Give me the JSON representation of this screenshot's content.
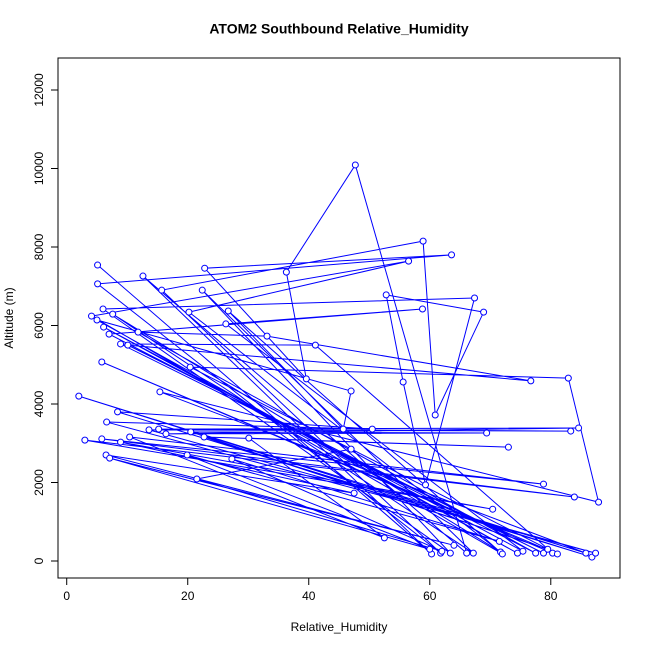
{
  "chart_data": {
    "type": "line",
    "title": "ATOM2 Southbound Relative_Humidity",
    "x_label": "Relative_Humidity",
    "y_label": "Altitude (m)",
    "color": "#0000ff",
    "markers": true,
    "grid": false,
    "xlim": [
      -1.44,
      91.44
    ],
    "ylim": [
      -433,
      12815
    ],
    "xticks": [
      0,
      20,
      40,
      60,
      80
    ],
    "yticks": [
      0,
      2000,
      4000,
      6000,
      8000,
      10000,
      12000
    ],
    "x": [
      5.1,
      60.3,
      12.6,
      66.1,
      47.7,
      36.3,
      39.6,
      22.8,
      63.6,
      5.1,
      61.8,
      15.7,
      58.9,
      60.9,
      68.9,
      52.8,
      55.6,
      59.3,
      67.4,
      6.0,
      63.4,
      22.4,
      67.2,
      7.6,
      71.7,
      20.2,
      56.5,
      4.1,
      72.0,
      26.7,
      45.7,
      47.0,
      5.0,
      74.5,
      6.1,
      75.4,
      26.3,
      58.8,
      7.0,
      77.5,
      11.8,
      33.1,
      76.7,
      10.1,
      78.8,
      8.9,
      41.1,
      80.3,
      5.8,
      81.1,
      20.4,
      82.9,
      87.9,
      15.4,
      85.8,
      2.0,
      86.8,
      8.4,
      50.5,
      6.6,
      87.4,
      13.6,
      83.3,
      15.2,
      84.6,
      16.4,
      69.4,
      20.5,
      79.5,
      22.7,
      73.0,
      30.1,
      52.5,
      10.4,
      78.8,
      5.8,
      83.9,
      3.0,
      70.4,
      8.9,
      47.5,
      6.5,
      64.0,
      7.1,
      60.0,
      19.9,
      71.5,
      27.3,
      62.0,
      21.5,
      47.0
    ],
    "y": [
      7540,
      180,
      7260,
      200,
      10090,
      7360,
      4640,
      7460,
      7800,
      7060,
      200,
      6900,
      8150,
      3720,
      6340,
      6780,
      4560,
      1940,
      6700,
      6420,
      200,
      6900,
      200,
      6290,
      230,
      6340,
      7640,
      6240,
      180,
      6370,
      3360,
      4330,
      6140,
      200,
      5960,
      250,
      6040,
      6420,
      5780,
      200,
      5830,
      5730,
      4590,
      5500,
      200,
      5530,
      5500,
      200,
      5070,
      180,
      4940,
      4660,
      1500,
      4310,
      200,
      4200,
      100,
      3800,
      3360,
      3540,
      200,
      3340,
      3310,
      3360,
      3390,
      3240,
      3260,
      3290,
      300,
      3160,
      2900,
      3130,
      590,
      3160,
      1960,
      3110,
      1630,
      3080,
      1320,
      3030,
      1730,
      2700,
      400,
      2620,
      300,
      2700,
      500,
      2600,
      250,
      2090,
      2850
    ]
  }
}
